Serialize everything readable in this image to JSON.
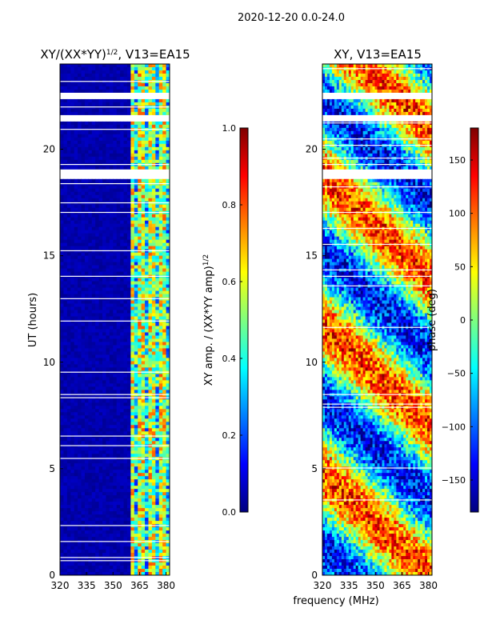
{
  "figure_title": "2020-12-20 0.0-24.0",
  "colormap": [
    "#00007f",
    "#0000ff",
    "#007fff",
    "#00ffff",
    "#7fff7f",
    "#ffff00",
    "#ff7f00",
    "#ff0000",
    "#7f0000"
  ],
  "chart_data": [
    {
      "type": "heatmap",
      "title_main": "XY/(XX*YY)",
      "title_sup": "1/2",
      "title_suffix": ", V13=EA15",
      "xlabel": "",
      "ylabel": "UT (hours)",
      "xlim": [
        320,
        382
      ],
      "ylim": [
        0,
        24
      ],
      "xticks": [
        320,
        335,
        350,
        365,
        380
      ],
      "yticks": [
        0,
        5,
        10,
        15,
        20
      ],
      "colorbar": {
        "label_main": "XY amp. / (XX*YY amp)",
        "label_sup": "1/2",
        "range": [
          0.0,
          1.0
        ],
        "ticks": [
          "0.0",
          "0.2",
          "0.4",
          "0.6",
          "0.8",
          "1.0"
        ],
        "tick_values": [
          0.0,
          0.2,
          0.4,
          0.6,
          0.8,
          1.0
        ]
      },
      "description_values": {
        "low_band_mhz": [
          320,
          360
        ],
        "low_band_value": 0.05,
        "high_band_mhz": [
          360,
          382
        ],
        "high_band_value_range": [
          0.2,
          1.0
        ],
        "data_gaps_ut_hours": [
          [
            18.6,
            19.0
          ],
          [
            21.3,
            21.6
          ],
          [
            22.3,
            22.6
          ]
        ]
      }
    },
    {
      "type": "heatmap",
      "title_main": "XY, V13=EA15",
      "xlabel": "frequency (MHz)",
      "ylabel": "",
      "xlim": [
        320,
        382
      ],
      "ylim": [
        0,
        24
      ],
      "xticks": [
        320,
        335,
        350,
        365,
        380
      ],
      "yticks": [
        0,
        5,
        10,
        15,
        20
      ],
      "colorbar": {
        "label_main": "phase (deg)",
        "range": [
          -180,
          180
        ],
        "ticks": [
          "−150",
          "−100",
          "−50",
          "0",
          "50",
          "100",
          "150"
        ],
        "tick_values": [
          -150,
          -100,
          -50,
          0,
          50,
          100,
          150
        ]
      },
      "description_values": {
        "phase_range_deg": [
          -180,
          180
        ],
        "data_gaps_ut_hours": [
          [
            18.6,
            19.0
          ],
          [
            21.3,
            21.6
          ],
          [
            22.3,
            22.6
          ]
        ]
      }
    }
  ]
}
